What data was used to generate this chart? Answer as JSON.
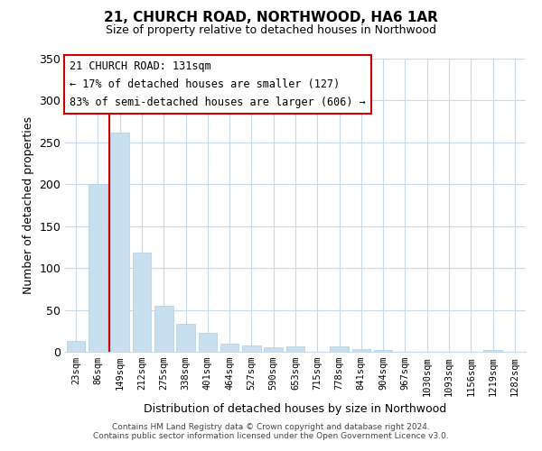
{
  "title": "21, CHURCH ROAD, NORTHWOOD, HA6 1AR",
  "subtitle": "Size of property relative to detached houses in Northwood",
  "xlabel": "Distribution of detached houses by size in Northwood",
  "ylabel": "Number of detached properties",
  "bar_color": "#c8dff0",
  "bar_edge_color": "#b0cfe0",
  "categories": [
    "23sqm",
    "86sqm",
    "149sqm",
    "212sqm",
    "275sqm",
    "338sqm",
    "401sqm",
    "464sqm",
    "527sqm",
    "590sqm",
    "653sqm",
    "715sqm",
    "778sqm",
    "841sqm",
    "904sqm",
    "967sqm",
    "1030sqm",
    "1093sqm",
    "1156sqm",
    "1219sqm",
    "1282sqm"
  ],
  "values": [
    13,
    200,
    262,
    118,
    55,
    33,
    23,
    10,
    8,
    5,
    6,
    0,
    7,
    3,
    2,
    0,
    0,
    0,
    0,
    2,
    0
  ],
  "ylim": [
    0,
    350
  ],
  "yticks": [
    0,
    50,
    100,
    150,
    200,
    250,
    300,
    350
  ],
  "vline_x_idx": 1.5,
  "vline_color": "#cc0000",
  "annotation_title": "21 CHURCH ROAD: 131sqm",
  "annotation_line1": "← 17% of detached houses are smaller (127)",
  "annotation_line2": "83% of semi-detached houses are larger (606) →",
  "footer1": "Contains HM Land Registry data © Crown copyright and database right 2024.",
  "footer2": "Contains public sector information licensed under the Open Government Licence v3.0.",
  "background_color": "#ffffff",
  "grid_color": "#c8d8e8"
}
